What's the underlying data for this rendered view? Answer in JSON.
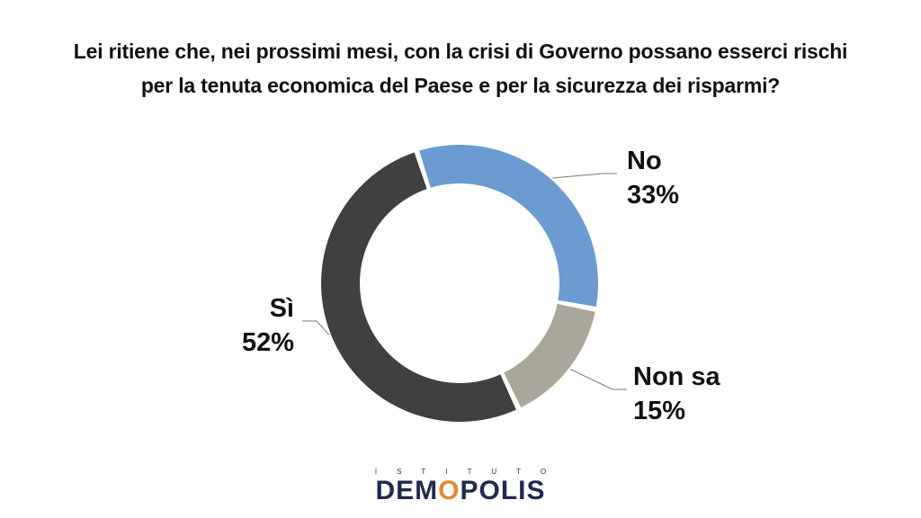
{
  "title": {
    "line1": "Lei ritiene che, nei prossimi mesi, con la crisi di Governo possano esserci rischi",
    "line2": "per la tenuta economica del Paese e per la sicurezza dei risparmi?"
  },
  "chart_data": {
    "type": "pie",
    "donut": true,
    "slices": [
      {
        "label": "No",
        "value": 33,
        "value_label": "33%",
        "color": "#6b9bd1"
      },
      {
        "label": "Non sa",
        "value": 15,
        "value_label": "15%",
        "color": "#aaa69a"
      },
      {
        "label": "Sì",
        "value": 52,
        "value_label": "52%",
        "color": "#404040"
      }
    ],
    "legend": "none"
  },
  "logo": {
    "top_text": "ISTITUTO",
    "main_before": "DEM",
    "main_o": "O",
    "main_after": "POLIS"
  }
}
